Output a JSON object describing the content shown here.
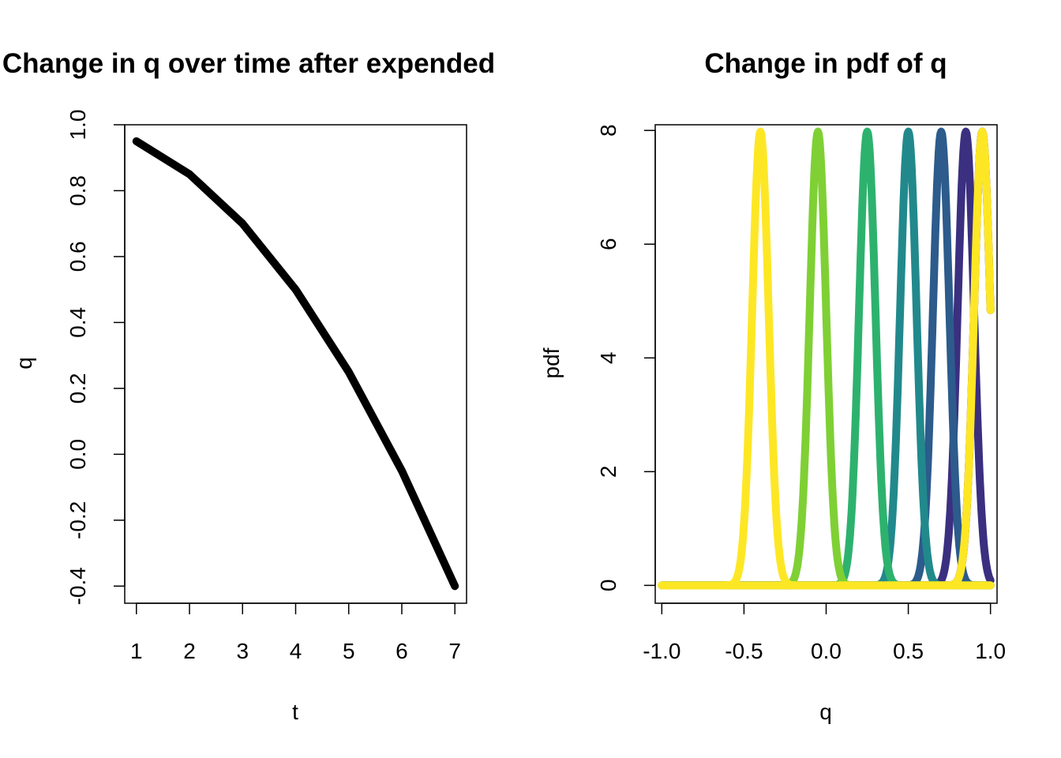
{
  "chart_data": [
    {
      "type": "line",
      "title": "Change in q over time after expended",
      "xlabel": "t",
      "ylabel": "q",
      "xlim": [
        0.78,
        7.22
      ],
      "ylim": [
        -0.452,
        1.0
      ],
      "x_ticks": [
        1,
        2,
        3,
        4,
        5,
        6,
        7
      ],
      "x_tick_labels": [
        "1",
        "2",
        "3",
        "4",
        "5",
        "6",
        "7"
      ],
      "y_ticks": [
        -0.4,
        -0.2,
        0.0,
        0.2,
        0.4,
        0.6,
        0.8,
        1.0
      ],
      "y_tick_labels": [
        "-0.4",
        "-0.2",
        "0.0",
        "0.2",
        "0.4",
        "0.6",
        "0.8",
        "1.0"
      ],
      "grid": false,
      "series": [
        {
          "x": [
            1,
            2,
            3,
            4,
            5,
            6,
            7
          ],
          "y": [
            0.95,
            0.85,
            0.7,
            0.5,
            0.25,
            -0.05,
            -0.4
          ],
          "color": "#000000"
        }
      ]
    },
    {
      "type": "line",
      "title": "Change in pdf of q",
      "xlabel": "q",
      "ylabel": "pdf",
      "xlim": [
        -1.04,
        1.04
      ],
      "ylim": [
        -0.314,
        8.1
      ],
      "x_ticks": [
        -1.0,
        -0.5,
        0.0,
        0.5,
        1.0
      ],
      "x_tick_labels": [
        "-1.0",
        "-0.5",
        "0.0",
        "0.5",
        "1.0"
      ],
      "y_ticks": [
        0,
        2,
        4,
        6,
        8
      ],
      "y_tick_labels": [
        "0",
        "2",
        "4",
        "6",
        "8"
      ],
      "grid": false,
      "curve": {
        "sd": 0.05,
        "x_from": -1,
        "x_to": 1,
        "points": 401
      },
      "series": [
        {
          "mean": 0.95,
          "color": "#440154"
        },
        {
          "mean": 0.85,
          "color": "#3B2F80"
        },
        {
          "mean": 0.7,
          "color": "#2C5B8C"
        },
        {
          "mean": 0.5,
          "color": "#21898C"
        },
        {
          "mean": 0.25,
          "color": "#2DB26E"
        },
        {
          "mean": -0.05,
          "color": "#7FD034"
        },
        {
          "mean": -0.4,
          "color": "#FDE725"
        }
      ],
      "overlay": [
        {
          "mean": 0.95,
          "color": "#FDE725"
        }
      ]
    }
  ]
}
